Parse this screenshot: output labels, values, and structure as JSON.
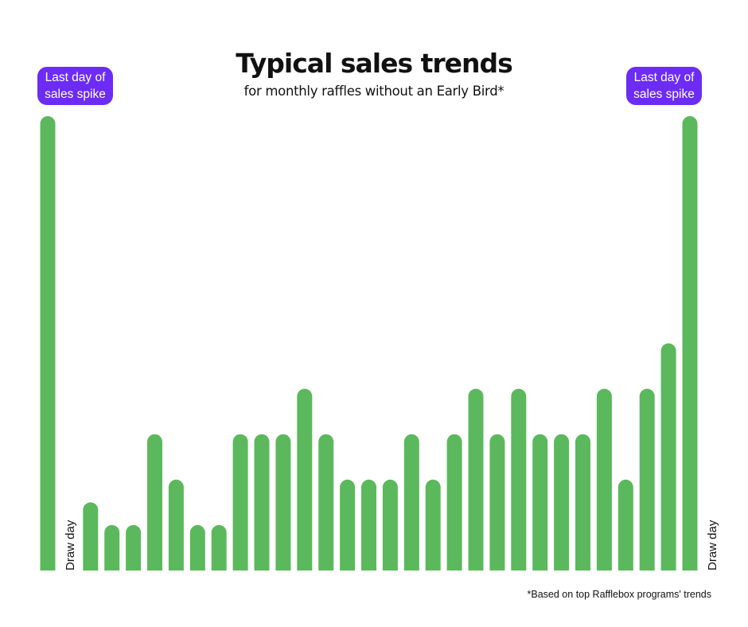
{
  "header": {
    "title": "Typical sales trends",
    "subtitle": "for monthly raffles without an Early Bird*"
  },
  "annotations": {
    "spike_left": "Last day of\nsales spike",
    "spike_right": "Last day of\nsales spike",
    "draw_day_left": "Draw day",
    "draw_day_right": "Draw day"
  },
  "footnote": "*Based on top Rafflebox programs' trends",
  "colors": {
    "bar": "#5cb85c",
    "badge": "#6c2cf5",
    "text": "#111111"
  },
  "chart_data": {
    "type": "bar",
    "title": "Typical sales trends",
    "subtitle": "for monthly raffles without an Early Bird*",
    "xlabel": "",
    "ylabel": "",
    "grid": false,
    "values": [
      10,
      null,
      1.5,
      1,
      1,
      3,
      2,
      1,
      1,
      3,
      3,
      3,
      4,
      3,
      2,
      2,
      2,
      3,
      2,
      3,
      4,
      3,
      4,
      3,
      3,
      3,
      4,
      2,
      4,
      5,
      10,
      null
    ],
    "ylim": [
      0,
      10
    ],
    "draw_day_positions": [
      1,
      31
    ]
  }
}
